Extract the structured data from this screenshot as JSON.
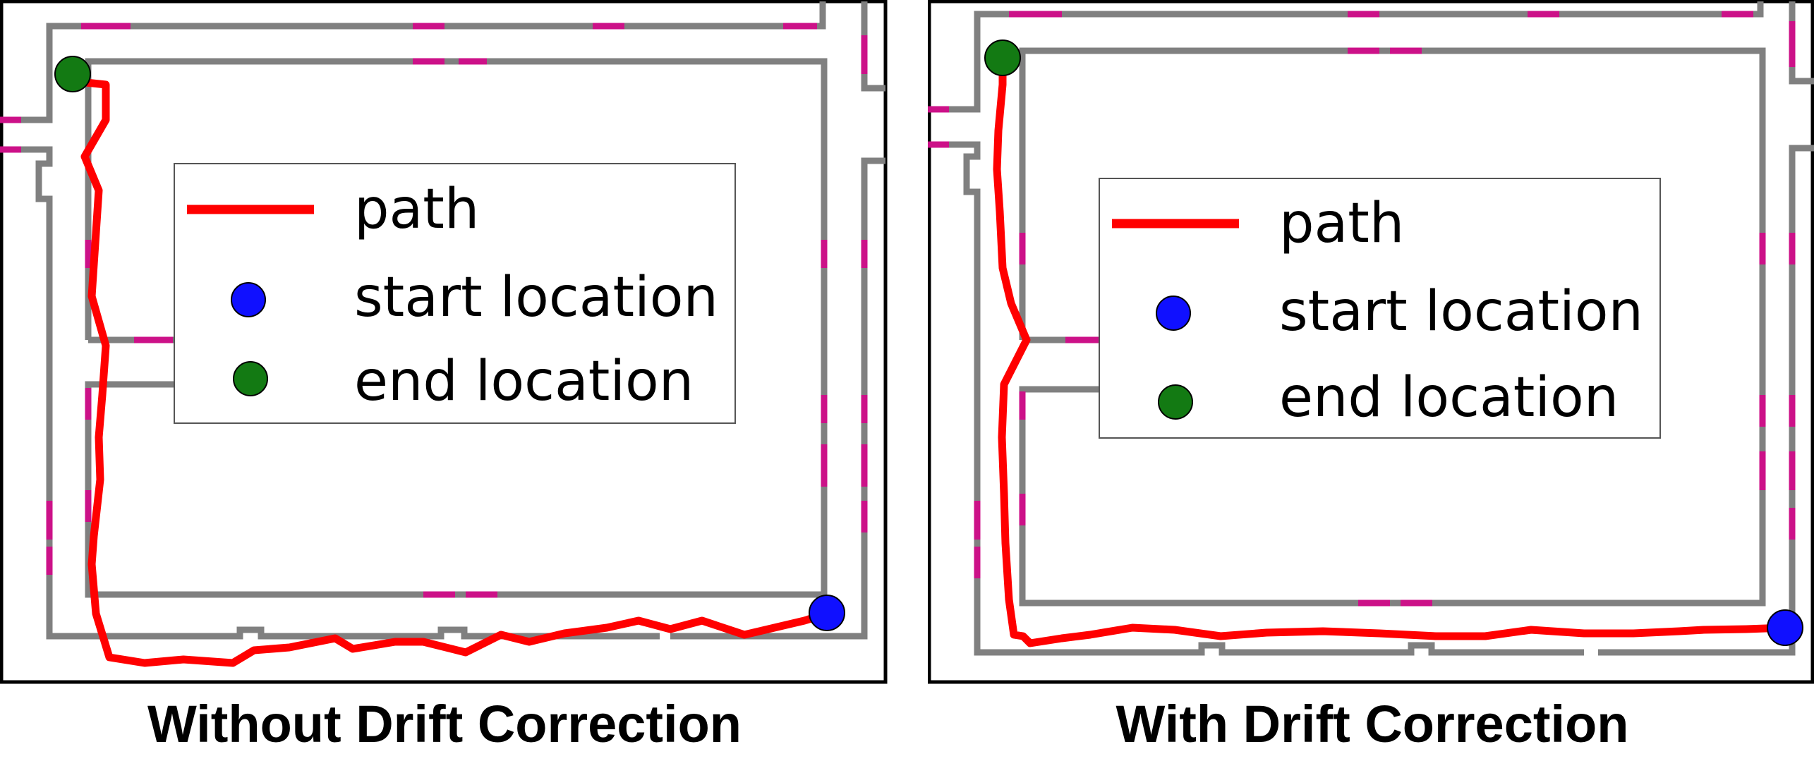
{
  "panels": [
    {
      "id": "without",
      "caption": "Without Drift Correction",
      "legend": {
        "path_label": "path",
        "start_label": "start location",
        "end_label": "end location"
      }
    },
    {
      "id": "with",
      "caption": "With Drift Correction",
      "legend": {
        "path_label": "path",
        "start_label": "start location",
        "end_label": "end location"
      }
    }
  ],
  "colors": {
    "path": "#ff0000",
    "start": "#1010ff",
    "end": "#137a13",
    "wall": "#808080",
    "door": "#cc1188",
    "frame": "#000000"
  }
}
